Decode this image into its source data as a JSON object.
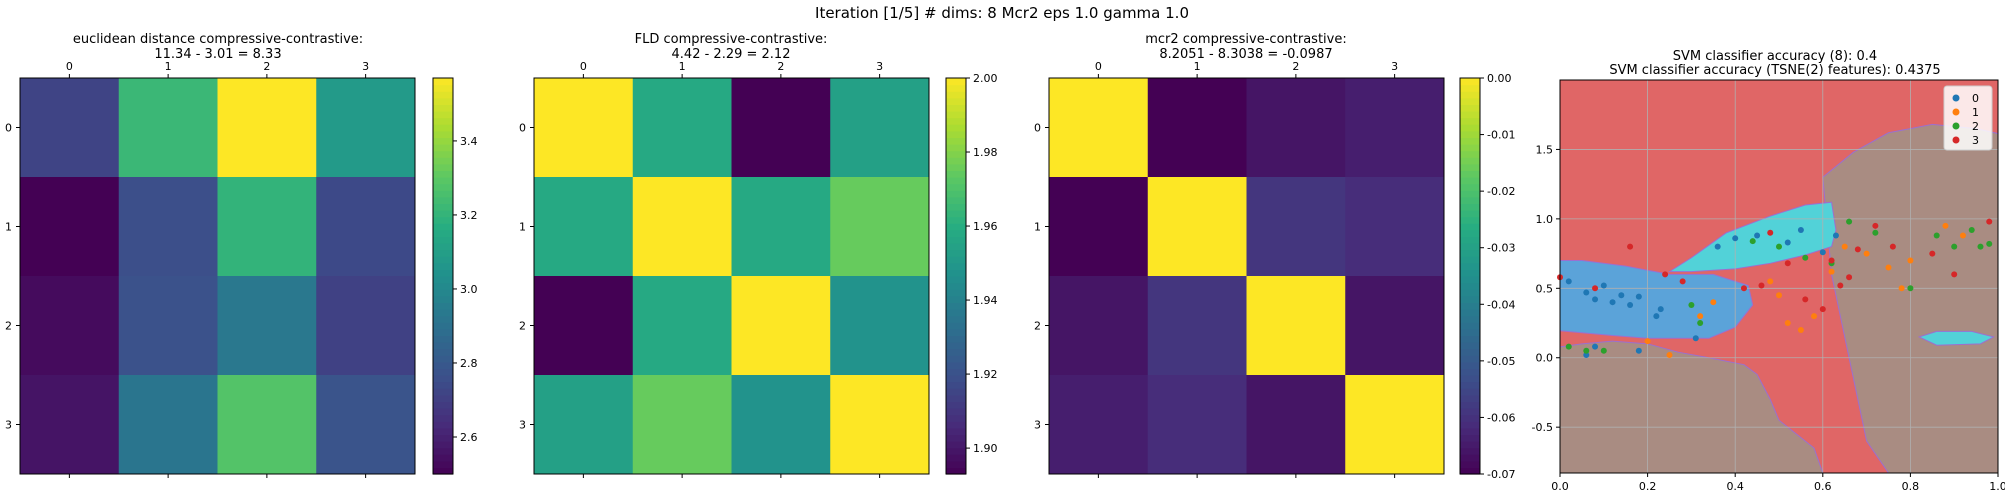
{
  "figure": {
    "suptitle": "Iteration [1/5] # dims: 8 Mcr2 eps 1.0 gamma 1.0"
  },
  "chart_data": [
    {
      "type": "heatmap",
      "title_line1": "euclidean distance compressive-contrastive:",
      "title_line2": "11.34 - 3.01 = 8.33",
      "x_ticks": [
        "0",
        "1",
        "2",
        "3"
      ],
      "y_ticks": [
        "0",
        "1",
        "2",
        "3"
      ],
      "values": [
        [
          2.72,
          3.22,
          3.57,
          3.08
        ],
        [
          2.5,
          2.76,
          3.2,
          2.74
        ],
        [
          2.53,
          2.77,
          2.93,
          2.71
        ],
        [
          2.56,
          2.92,
          3.28,
          2.78
        ]
      ],
      "vmin": 2.5,
      "vmax": 3.57,
      "colorbar_ticks": [
        "2.6",
        "2.8",
        "3.0",
        "3.2",
        "3.4"
      ],
      "colormap": "viridis"
    },
    {
      "type": "heatmap",
      "title_line1": "FLD compressive-contrastive:",
      "title_line2": "4.42 - 2.29 = 2.12",
      "x_ticks": [
        "0",
        "1",
        "2",
        "3"
      ],
      "y_ticks": [
        "0",
        "1",
        "2",
        "3"
      ],
      "values": [
        [
          2.0,
          1.958,
          1.893,
          1.954
        ],
        [
          1.958,
          2.0,
          1.958,
          1.975
        ],
        [
          1.893,
          1.958,
          2.0,
          1.948
        ],
        [
          1.954,
          1.975,
          1.948,
          2.0
        ]
      ],
      "vmin": 1.893,
      "vmax": 2.0,
      "colorbar_ticks": [
        "1.90",
        "1.92",
        "1.94",
        "1.96",
        "1.98",
        "2.00"
      ],
      "colormap": "viridis"
    },
    {
      "type": "heatmap",
      "title_line1": "mcr2 compressive-contrastive:",
      "title_line2": "8.2051 - 8.3038 = -0.0987",
      "x_ticks": [
        "0",
        "1",
        "2",
        "3"
      ],
      "y_ticks": [
        "0",
        "1",
        "2",
        "3"
      ],
      "values": [
        [
          0.0,
          -0.07,
          -0.066,
          -0.064
        ],
        [
          -0.07,
          0.0,
          -0.059,
          -0.061
        ],
        [
          -0.066,
          -0.059,
          0.0,
          -0.066
        ],
        [
          -0.064,
          -0.061,
          -0.066,
          0.0
        ]
      ],
      "vmin": -0.07,
      "vmax": 0.0,
      "colorbar_ticks": [
        "-0.07",
        "-0.06",
        "-0.05",
        "-0.04",
        "-0.03",
        "-0.02",
        "-0.01",
        "0.00"
      ],
      "colormap": "viridis"
    },
    {
      "type": "scatter",
      "title_line1": "SVM classifier accuracy (8): 0.4",
      "title_line2": "SVM classifier accuracy (TSNE(2) features): 0.4375",
      "xlim": [
        0.0,
        1.0
      ],
      "ylim": [
        -0.83,
        2.0
      ],
      "x_ticks": [
        "0.0",
        "0.2",
        "0.4",
        "0.6",
        "0.8",
        "1.0"
      ],
      "y_ticks": [
        "-0.5",
        "0.0",
        "0.5",
        "1.0",
        "1.5"
      ],
      "grid": true,
      "legend_position": "top-right",
      "region_colors": {
        "0": "#5ba3d9",
        "1": "#a98c82",
        "2": "#52d2d8",
        "3": "#e06666"
      },
      "series": [
        {
          "name": "0",
          "color": "#1f77b4",
          "points": [
            [
              0.02,
              0.55
            ],
            [
              0.06,
              0.47
            ],
            [
              0.08,
              0.42
            ],
            [
              0.1,
              0.52
            ],
            [
              0.12,
              0.4
            ],
            [
              0.14,
              0.45
            ],
            [
              0.16,
              0.38
            ],
            [
              0.18,
              0.44
            ],
            [
              0.22,
              0.3
            ],
            [
              0.08,
              0.08
            ],
            [
              0.18,
              0.05
            ],
            [
              0.23,
              0.35
            ],
            [
              0.06,
              0.02
            ],
            [
              0.31,
              0.14
            ],
            [
              0.4,
              0.86
            ],
            [
              0.36,
              0.8
            ],
            [
              0.45,
              0.88
            ],
            [
              0.52,
              0.83
            ],
            [
              0.6,
              0.76
            ],
            [
              0.55,
              0.92
            ],
            [
              0.63,
              0.88
            ]
          ]
        },
        {
          "name": "1",
          "color": "#ff7f0e",
          "points": [
            [
              0.2,
              0.12
            ],
            [
              0.25,
              0.02
            ],
            [
              0.32,
              0.3
            ],
            [
              0.35,
              0.4
            ],
            [
              0.48,
              0.55
            ],
            [
              0.5,
              0.45
            ],
            [
              0.52,
              0.25
            ],
            [
              0.55,
              0.2
            ],
            [
              0.58,
              0.3
            ],
            [
              0.62,
              0.62
            ],
            [
              0.65,
              0.8
            ],
            [
              0.8,
              0.7
            ],
            [
              0.88,
              0.95
            ],
            [
              0.92,
              0.88
            ],
            [
              0.75,
              0.65
            ],
            [
              0.7,
              0.75
            ],
            [
              0.78,
              0.5
            ]
          ]
        },
        {
          "name": "2",
          "color": "#2ca02c",
          "points": [
            [
              0.02,
              0.08
            ],
            [
              0.06,
              0.05
            ],
            [
              0.1,
              0.05
            ],
            [
              0.3,
              0.38
            ],
            [
              0.32,
              0.25
            ],
            [
              0.44,
              0.84
            ],
            [
              0.5,
              0.8
            ],
            [
              0.56,
              0.72
            ],
            [
              0.62,
              0.68
            ],
            [
              0.66,
              0.98
            ],
            [
              0.72,
              0.9
            ],
            [
              0.8,
              0.5
            ],
            [
              0.86,
              0.88
            ],
            [
              0.9,
              0.8
            ],
            [
              0.94,
              0.92
            ],
            [
              0.96,
              0.8
            ],
            [
              0.98,
              0.82
            ]
          ]
        },
        {
          "name": "3",
          "color": "#d62728",
          "points": [
            [
              0.0,
              0.58
            ],
            [
              0.08,
              0.5
            ],
            [
              0.16,
              0.8
            ],
            [
              0.24,
              0.6
            ],
            [
              0.28,
              0.55
            ],
            [
              0.42,
              0.5
            ],
            [
              0.46,
              0.52
            ],
            [
              0.48,
              0.9
            ],
            [
              0.52,
              0.68
            ],
            [
              0.56,
              0.42
            ],
            [
              0.6,
              0.35
            ],
            [
              0.62,
              0.7
            ],
            [
              0.64,
              0.52
            ],
            [
              0.66,
              0.58
            ],
            [
              0.68,
              0.78
            ],
            [
              0.72,
              0.95
            ],
            [
              0.76,
              0.8
            ],
            [
              0.85,
              0.75
            ],
            [
              0.9,
              0.6
            ],
            [
              0.98,
              0.98
            ]
          ]
        }
      ]
    }
  ]
}
